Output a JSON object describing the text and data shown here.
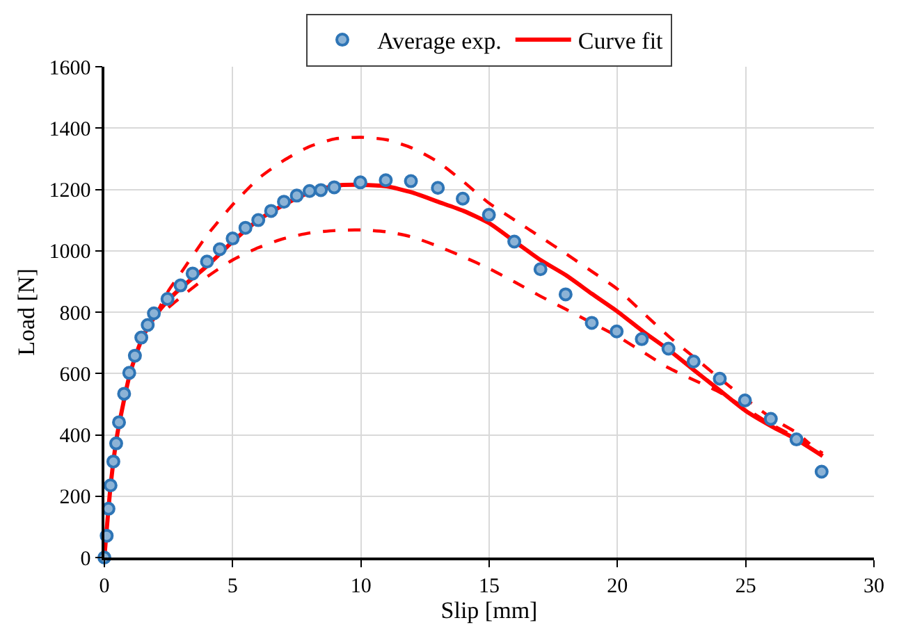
{
  "chart_data": {
    "type": "scatter",
    "xlabel": "Slip [mm]",
    "ylabel": "Load [N]",
    "xlim": [
      0,
      30
    ],
    "xticks": [
      0,
      5,
      10,
      15,
      20,
      25,
      30
    ],
    "ylim": [
      0,
      1600
    ],
    "yticks": [
      0,
      200,
      400,
      600,
      800,
      1000,
      1200,
      1400,
      1600
    ],
    "grid": true,
    "legend": "top",
    "series": [
      {
        "name": "Average exp.",
        "marker": "circle",
        "color": "#2e75b6",
        "x": [
          0,
          0.09,
          0.16,
          0.24,
          0.35,
          0.46,
          0.57,
          0.77,
          0.97,
          1.19,
          1.44,
          1.69,
          1.93,
          2.46,
          2.97,
          3.44,
          4,
          4.5,
          5,
          5.5,
          6,
          6.5,
          7,
          7.5,
          8,
          8.44,
          8.96,
          9.98,
          10.97,
          11.95,
          13,
          13.97,
          14.99,
          15.98,
          17,
          17.98,
          19,
          19.97,
          20.95,
          21.99,
          22.97,
          23.99,
          24.97,
          25.98,
          26.98,
          27.96
        ],
        "values": [
          0,
          71,
          159,
          235,
          313,
          372,
          441,
          534,
          602,
          658,
          717,
          758,
          796,
          843,
          887,
          926,
          965,
          1005,
          1040,
          1075,
          1100,
          1130,
          1160,
          1180,
          1195,
          1198,
          1207,
          1223,
          1230,
          1227,
          1205,
          1170,
          1117,
          1030,
          940,
          858,
          765,
          737,
          712,
          681,
          639,
          583,
          512,
          452,
          385,
          280
        ]
      },
      {
        "name": "Curve fit",
        "type": "line",
        "line_style": "solid",
        "marker": "none",
        "color": "#ff0000",
        "x": [
          0,
          0.25,
          0.5,
          1,
          1.5,
          2,
          2.5,
          3,
          4,
          5,
          6,
          7,
          8,
          9,
          10,
          11,
          12,
          13,
          14,
          15,
          16,
          17,
          18,
          19,
          20,
          21,
          22,
          23,
          24,
          25,
          26,
          27,
          28
        ],
        "values": [
          0,
          240,
          400,
          600,
          720,
          790,
          840,
          880,
          950,
          1030,
          1100,
          1150,
          1190,
          1212,
          1215,
          1210,
          1190,
          1160,
          1130,
          1090,
          1030,
          970,
          920,
          860,
          802,
          737,
          677,
          610,
          544,
          478,
          428,
          384,
          331
        ]
      },
      {
        "type": "line",
        "line_style": "dashed",
        "marker": "none",
        "color": "#ff0000",
        "x": [
          2,
          2.5,
          3,
          4,
          5,
          6,
          7,
          8,
          9,
          10,
          11,
          12,
          13,
          14,
          15,
          16,
          17,
          18,
          19,
          20,
          21,
          22,
          23,
          24,
          25,
          26,
          27,
          27.5
        ],
        "values": [
          790,
          870,
          930,
          1050,
          1150,
          1235,
          1295,
          1340,
          1365,
          1370,
          1362,
          1335,
          1290,
          1225,
          1155,
          1100,
          1045,
          990,
          933,
          875,
          798,
          721,
          652,
          583,
          517,
          455,
          406,
          370
        ]
      },
      {
        "type": "line",
        "line_style": "dashed",
        "marker": "none",
        "color": "#ff0000",
        "x": [
          2.5,
          3,
          4,
          5,
          6,
          7,
          8,
          9,
          10,
          11,
          12,
          13,
          14,
          15,
          16,
          17,
          18,
          19,
          20,
          21,
          22,
          23,
          24,
          25,
          26,
          27,
          28
        ],
        "values": [
          815,
          850,
          915,
          970,
          1010,
          1040,
          1058,
          1066,
          1068,
          1062,
          1045,
          1015,
          980,
          942,
          898,
          852,
          809,
          765,
          721,
          670,
          618,
          578,
          538,
          486,
          434,
          390,
          340
        ]
      }
    ]
  }
}
